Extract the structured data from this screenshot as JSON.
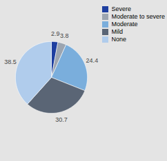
{
  "chart_data": {
    "type": "pie",
    "categories": [
      "Severe",
      "Moderate to severe",
      "Moderate",
      "Mild",
      "None"
    ],
    "values": [
      2.9,
      3.8,
      24.4,
      30.7,
      38.5
    ],
    "colors": [
      "#1e3fa0",
      "#9ca5b0",
      "#7aaedc",
      "#5a6575",
      "#b0ccec"
    ],
    "data_labels": true,
    "legend": "upper right"
  }
}
